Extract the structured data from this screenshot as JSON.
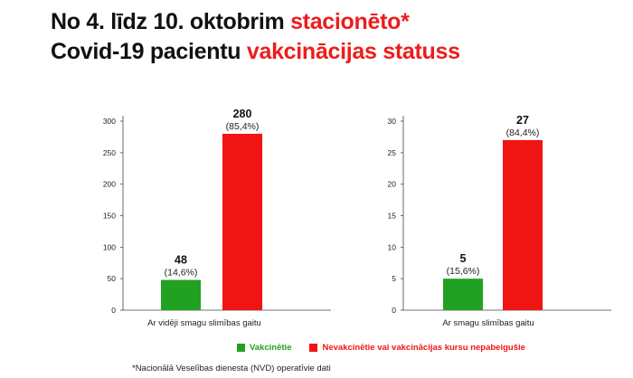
{
  "title": {
    "line1_prefix": "No 4. līdz 10. oktobrim ",
    "line1_highlight": "stacionēto*",
    "line2_prefix": "Covid-19 pacientu ",
    "line2_highlight": "vakcinācijas statuss"
  },
  "colors": {
    "vaccinated": "#22a022",
    "unvaccinated": "#f01414",
    "title_highlight": "#ee1c1c"
  },
  "legend": {
    "vaccinated": "Vakcinētie",
    "unvaccinated": "Nevakcinētie vai vakcinācijas kursu nepabeigušie"
  },
  "footnote": "*Nacionālā Veselības dienesta (NVD) operatīvie dati",
  "chart_data": [
    {
      "type": "bar",
      "xlabel": "Ar vidēji smagu slimības gaitu",
      "ylim": [
        0,
        300
      ],
      "yticks": [
        0,
        50,
        100,
        150,
        200,
        250,
        300
      ],
      "series": [
        {
          "name": "Vakcinētie",
          "value": 48,
          "label": "48",
          "percent": "(14,6%)"
        },
        {
          "name": "Nevakcinētie vai vakcinācijas kursu nepabeigušie",
          "value": 280,
          "label": "280",
          "percent": "(85,4%)"
        }
      ]
    },
    {
      "type": "bar",
      "xlabel": "Ar smagu slimības gaitu",
      "ylim": [
        0,
        30
      ],
      "yticks": [
        0,
        5,
        10,
        15,
        20,
        25,
        30
      ],
      "series": [
        {
          "name": "Vakcinētie",
          "value": 5,
          "label": "5",
          "percent": "(15,6%)"
        },
        {
          "name": "Nevakcinētie vai vakcinācijas kursu nepabeigušie",
          "value": 27,
          "label": "27",
          "percent": "(84,4%)"
        }
      ]
    }
  ]
}
